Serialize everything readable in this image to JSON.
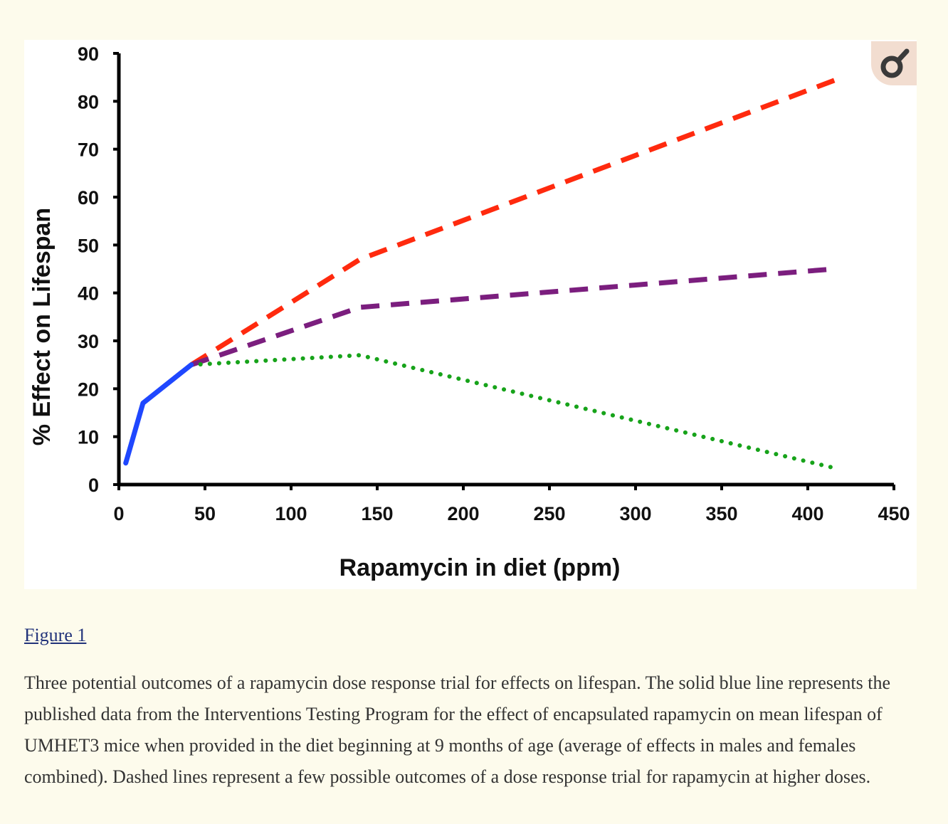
{
  "chart_data": {
    "type": "line",
    "xlabel": "Rapamycin in diet (ppm)",
    "ylabel": "% Effect on Lifespan",
    "xlim": [
      0,
      450
    ],
    "ylim": [
      0,
      90
    ],
    "x_ticks": [
      0,
      50,
      100,
      150,
      200,
      250,
      300,
      350,
      400,
      450
    ],
    "y_ticks": [
      0,
      10,
      20,
      30,
      40,
      50,
      60,
      70,
      80,
      90
    ],
    "grid": false,
    "legend": "none",
    "series": [
      {
        "color": "#ff2a0e",
        "style": "dashed",
        "x": [
          42,
          140,
          420
        ],
        "y": [
          25,
          47,
          85
        ]
      },
      {
        "color": "#7b1e7e",
        "style": "dashed",
        "x": [
          42,
          140,
          415
        ],
        "y": [
          25,
          37,
          45
        ]
      },
      {
        "color": "#17a31a",
        "style": "dotted",
        "x": [
          42,
          140,
          415
        ],
        "y": [
          25,
          27,
          3.5
        ]
      },
      {
        "color": "#1f47ff",
        "style": "solid",
        "x": [
          4,
          14,
          42
        ],
        "y": [
          4.5,
          17,
          25
        ]
      }
    ]
  },
  "toolbar": {
    "zoom_icon": "magnifier-icon"
  },
  "figure": {
    "link_label": "Figure 1",
    "caption": "Three potential outcomes of a rapamycin dose response trial for effects on lifespan. The solid blue line represents the published data from the Interventions Testing Program for the effect of encapsulated rapamycin on mean lifespan of UMHET3 mice when provided in the diet beginning at 9 months of age (average of effects in males and females combined). Dashed lines represent a few possible outcomes of a dose response trial for rapamycin at higher doses."
  }
}
